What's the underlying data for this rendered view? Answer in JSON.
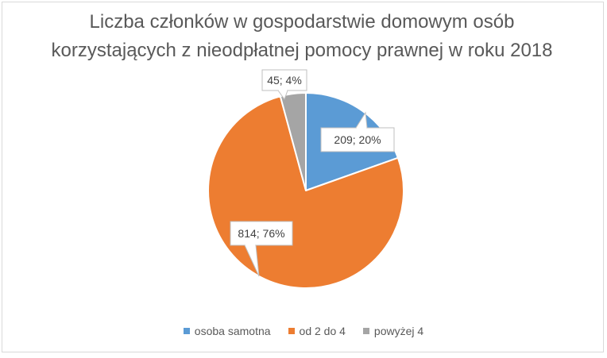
{
  "chart_data": {
    "type": "pie",
    "title_lines": [
      "Liczba członków w gospodarstwie domowym osób",
      "korzystających z nieodpłatnej pomocy prawnej w roku 2018"
    ],
    "categories": [
      "osoba samotna",
      "od 2 do 4",
      "powyżej 4"
    ],
    "values": [
      209,
      814,
      45
    ],
    "percentages": [
      "20%",
      "76%",
      "4%"
    ],
    "data_labels": [
      "209; 20%",
      "814; 76%",
      "45; 4%"
    ],
    "colors": [
      "#5b9bd5",
      "#ed7d31",
      "#a5a5a5"
    ],
    "legend_position": "bottom"
  }
}
